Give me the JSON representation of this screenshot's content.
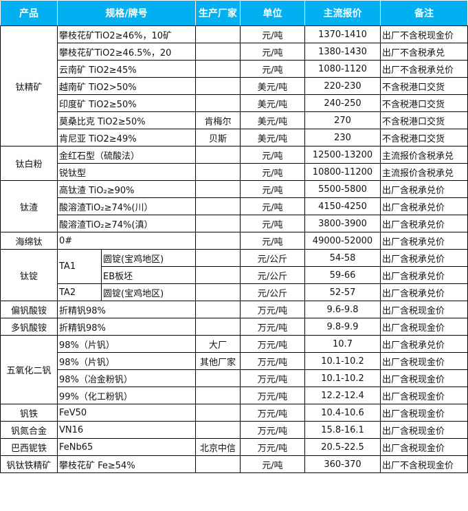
{
  "header": {
    "product": "产品",
    "spec": "规格/牌号",
    "maker": "生产厂家",
    "unit": "单位",
    "price": "主流报价",
    "note": "备注"
  },
  "groups": [
    {
      "product": "钛精矿",
      "rows": [
        {
          "spec": "攀枝花矿TiO2≥46%，10矿",
          "maker": "",
          "unit": "元/吨",
          "price": "1370-1410",
          "note": "出厂不含税现金价"
        },
        {
          "spec": "攀枝花矿TiO2≥46.5%，20",
          "maker": "",
          "unit": "元/吨",
          "price": "1380-1430",
          "note": "出厂不含税承兑"
        },
        {
          "spec": "云南矿 TiO2≥45%",
          "maker": "",
          "unit": "元/吨",
          "price": "1080-1120",
          "note": "出厂不含税承兑价"
        },
        {
          "spec": "越南矿 TiO2>50%",
          "maker": "",
          "unit": "美元/吨",
          "price": "220-230",
          "note": "不含税港口交货"
        },
        {
          "spec": "印度矿 TiO2≥50%",
          "maker": "",
          "unit": "美元/吨",
          "price": "240-250",
          "note": "不含税港口交货"
        },
        {
          "spec": "莫桑比克 TiO2≥50%",
          "maker": "肯梅尔",
          "unit": "美元/吨",
          "price": "270",
          "note": "不含税港口交货"
        },
        {
          "spec": "肯尼亚 TiO2≥49%",
          "maker": "贝斯",
          "unit": "美元/吨",
          "price": "230",
          "note": "不含税港口交货"
        }
      ]
    },
    {
      "product": "钛白粉",
      "rows": [
        {
          "spec": "金红石型（硫酸法）",
          "maker": "",
          "unit": "元/吨",
          "price": "12500-13200",
          "note": "主流报价含税承兑"
        },
        {
          "spec": "锐钛型",
          "maker": "",
          "unit": "元/吨",
          "price": "10800-11200",
          "note": "主流报价含税承兑"
        }
      ]
    },
    {
      "product": "钛渣",
      "rows": [
        {
          "spec": "高钛渣 TiO₂≥90%",
          "maker": "",
          "unit": "元/吨",
          "price": "5500-5800",
          "note": "出厂含税承兑价"
        },
        {
          "spec": "酸溶渣TiO₂≥74%(川）",
          "maker": "",
          "unit": "元/吨",
          "price": "4150-4250",
          "note": "出厂含税承兑价"
        },
        {
          "spec": "酸溶渣TiO₂≥74%(滇）",
          "maker": "",
          "unit": "元/吨",
          "price": "3800-3900",
          "note": "出厂含税承兑价"
        }
      ]
    },
    {
      "product": "海绵钛",
      "rows": [
        {
          "spec": "0#",
          "maker": "",
          "unit": "元/吨",
          "price": "49000-52000",
          "note": "出厂含税承兑价"
        }
      ]
    },
    {
      "product": "钛锭",
      "rows": [
        {
          "grade": "TA1",
          "spec": "圆锭(宝鸡地区)",
          "unit": "元/公斤",
          "price": "54-58",
          "note": "出厂含税承兑价"
        },
        {
          "grade": "TA1",
          "spec": "EB板坯",
          "unit": "元/公斤",
          "price": "59-66",
          "note": "出厂含税承兑价"
        },
        {
          "grade": "TA2",
          "spec": "圆锭(宝鸡地区)",
          "unit": "元/公斤",
          "price": "52-57",
          "note": "出厂含税承兑价"
        }
      ]
    },
    {
      "product": "偏钒酸铵",
      "rows": [
        {
          "spec": "折精钒98%",
          "maker": "",
          "unit": "万元/吨",
          "price": "9.6-9.8",
          "note": "出厂含税现金价"
        }
      ]
    },
    {
      "product": "多钒酸铵",
      "rows": [
        {
          "spec": "折精钒98%",
          "maker": "",
          "unit": "万元/吨",
          "price": "9.8-9.9",
          "note": "出厂含税现金价"
        }
      ]
    },
    {
      "product": "五氧化二钒",
      "rows": [
        {
          "spec": "98%（片钒）",
          "maker": "大厂",
          "unit": "万元/吨",
          "price": "10.7",
          "note": "出厂含税承兑价"
        },
        {
          "spec": "98%（片钒）",
          "maker": "其他厂家",
          "unit": "万元/吨",
          "price": "10.1-10.2",
          "note": "出厂含税现金价"
        },
        {
          "spec": "98%（冶金粉钒）",
          "maker": "",
          "unit": "万元/吨",
          "price": "10.1-10.2",
          "note": "出厂含税现金价"
        },
        {
          "spec": "99%（化工粉钒）",
          "maker": "",
          "unit": "万元/吨",
          "price": "12.2-12.4",
          "note": "出厂含税现金价"
        }
      ]
    },
    {
      "product": "钒铁",
      "rows": [
        {
          "spec": "FeV50",
          "maker": "",
          "unit": "万元/吨",
          "price": "10.4-10.6",
          "note": "出厂含税现金价"
        }
      ]
    },
    {
      "product": "钒氮合金",
      "rows": [
        {
          "spec": "VN16",
          "maker": "",
          "unit": "万元/吨",
          "price": "15.8-16.1",
          "note": "出厂含税现金价"
        }
      ]
    },
    {
      "product": "巴西铌铁",
      "rows": [
        {
          "spec": "FeNb65",
          "maker": "北京中信",
          "unit": "万元/吨",
          "price": "20.5-22.5",
          "note": "出厂含税现金价"
        }
      ]
    },
    {
      "product": "钒钛铁精矿",
      "rows": [
        {
          "spec": "攀枝花矿 Fe≥54%",
          "maker": "",
          "unit": "元/吨",
          "price": "360-370",
          "note": "出厂不含税现金价"
        }
      ]
    }
  ]
}
